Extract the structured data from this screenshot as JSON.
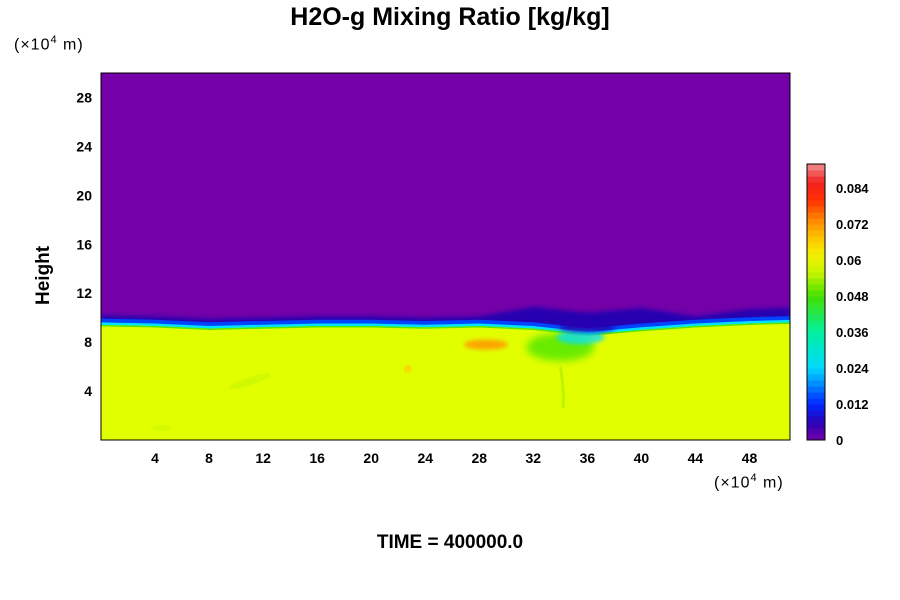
{
  "title": "H2O-g Mixing Ratio [kg/kg]",
  "time_label": "TIME = 400000.0",
  "colors": {
    "upper": "#7400a8",
    "lower": "#e2ff00",
    "band_dark": "#2600b0",
    "band_blue": "#0044ff",
    "band_cyan": "#00e0ff",
    "band_green": "#55e800",
    "orange": "#ff9a00"
  },
  "chart_data": {
    "type": "heatmap",
    "title": "H2O-g Mixing Ratio [kg/kg]",
    "xlabel": "",
    "ylabel": "Height",
    "x_unit": "(×10⁴ m)",
    "y_unit": "(×10⁴ m)",
    "xlim": [
      0,
      51
    ],
    "ylim": [
      0,
      30
    ],
    "x_ticks": [
      4,
      8,
      12,
      16,
      20,
      24,
      28,
      32,
      36,
      40,
      44,
      48
    ],
    "y_ticks": [
      4,
      8,
      12,
      16,
      20,
      24,
      28
    ],
    "colorbar": {
      "min": 0,
      "max": 0.092,
      "ticks": [
        0,
        0.012,
        0.024,
        0.036,
        0.048,
        0.06,
        0.072,
        0.084
      ],
      "tick_labels": [
        "0",
        "0.012",
        "0.024",
        "0.036",
        "0.048",
        "0.06",
        "0.072",
        "0.084"
      ]
    },
    "field": {
      "below_interface_value": 0.058,
      "above_interface_value": 0.0,
      "interface_height": [
        [
          0,
          9.6
        ],
        [
          4,
          9.5
        ],
        [
          8,
          9.3
        ],
        [
          12,
          9.4
        ],
        [
          16,
          9.5
        ],
        [
          20,
          9.5
        ],
        [
          24,
          9.4
        ],
        [
          28,
          9.5
        ],
        [
          32,
          9.3
        ],
        [
          36,
          8.8
        ],
        [
          40,
          9.2
        ],
        [
          44,
          9.5
        ],
        [
          48,
          9.7
        ],
        [
          51,
          9.8
        ]
      ],
      "moist_anomalies": [
        {
          "x": 28.5,
          "y": 7.8,
          "value": 0.068
        },
        {
          "x": 34.0,
          "y": 7.0,
          "value": 0.044
        }
      ]
    },
    "grid": false,
    "legend": "colorbar-right",
    "footer": "TIME = 400000.0"
  }
}
